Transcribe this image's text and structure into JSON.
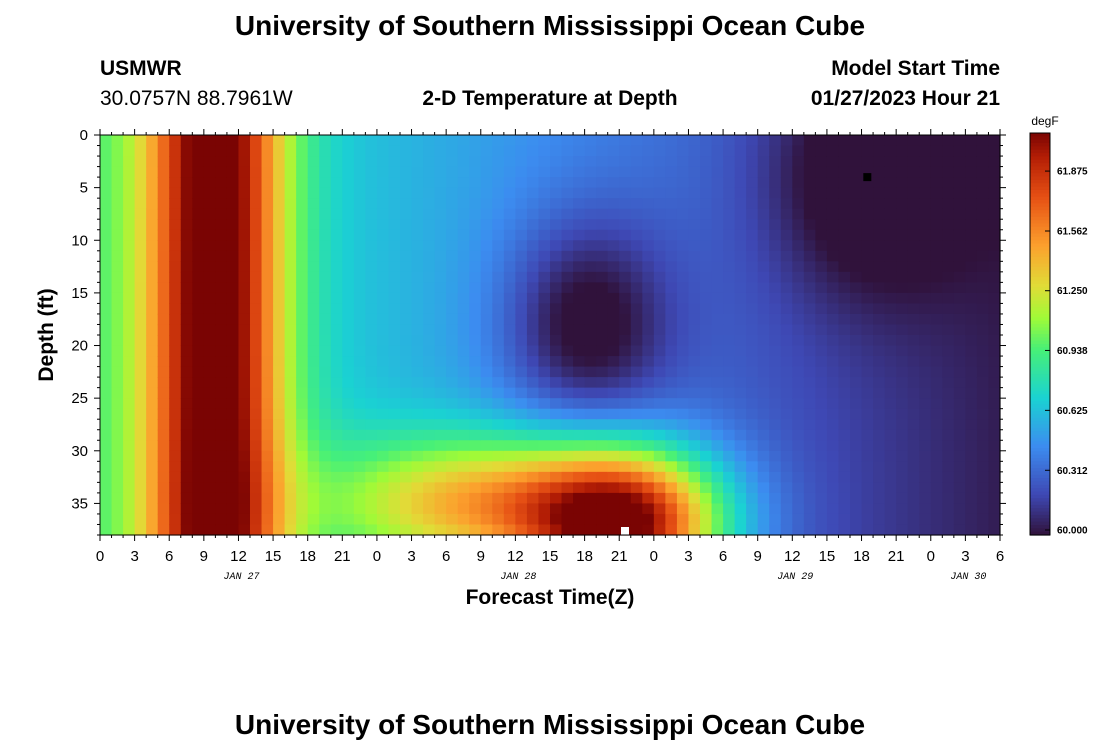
{
  "page": {
    "title": "University of Southern Mississippi Ocean Cube",
    "footer_title": "University of Southern Mississippi Ocean Cube",
    "station": "USMWR",
    "coords": "30.0757N  88.7961W",
    "subtitle": "2-D Temperature at Depth",
    "model_label": "Model Start Time",
    "model_time": "01/27/2023 Hour 21"
  },
  "chart_data": {
    "type": "heatmap",
    "title": "2-D Temperature at Depth",
    "xlabel": "Forecast Time(Z)",
    "ylabel": "Depth (ft)",
    "x_range_hours": [
      0,
      78
    ],
    "y_range_ft": [
      0,
      38
    ],
    "x_tick_labels": [
      "0",
      "3",
      "6",
      "9",
      "12",
      "15",
      "18",
      "21",
      "0",
      "3",
      "6",
      "9",
      "12",
      "15",
      "18",
      "21",
      "0",
      "3",
      "6",
      "9",
      "12",
      "15",
      "18",
      "21",
      "0",
      "3",
      "6"
    ],
    "x_tick_hours": [
      0,
      3,
      6,
      9,
      12,
      15,
      18,
      21,
      24,
      27,
      30,
      33,
      36,
      39,
      42,
      45,
      48,
      51,
      54,
      57,
      60,
      63,
      66,
      69,
      72,
      75,
      78
    ],
    "y_tick_labels": [
      "0",
      "5",
      "10",
      "15",
      "20",
      "25",
      "30",
      "35"
    ],
    "y_tick_values": [
      0,
      5,
      10,
      15,
      20,
      25,
      30,
      35
    ],
    "date_labels": [
      {
        "text": "JAN 27",
        "hour": 12
      },
      {
        "text": "JAN 28",
        "hour": 36
      },
      {
        "text": "JAN 29",
        "hour": 60
      },
      {
        "text": "JAN 30",
        "hour": 75
      }
    ],
    "colorbar": {
      "unit": "degF",
      "min": 60.0,
      "max": 62.1,
      "tick_labels": [
        "61.875",
        "61.562",
        "61.250",
        "60.938",
        "60.625",
        "60.312",
        "60.000"
      ],
      "tick_values": [
        61.875,
        61.562,
        61.25,
        60.938,
        60.625,
        60.312,
        60.0
      ]
    },
    "markers": [
      {
        "type": "min",
        "hour": 66.5,
        "depth": 4,
        "color": "#000000"
      },
      {
        "type": "max",
        "hour": 45.5,
        "depth": 38,
        "color": "#ffffff"
      }
    ],
    "field": {
      "description_components": [
        {
          "hour": 10,
          "depth": 19,
          "sx": 4.2,
          "sy": 200,
          "amp": 1.5
        },
        {
          "hour": 45.5,
          "depth": 37,
          "sx": 6,
          "sy": 5,
          "amp": 1.6
        },
        {
          "hour": 33,
          "depth": 35,
          "sx": 9,
          "sy": 4.5,
          "amp": 0.9
        },
        {
          "hour": 42,
          "depth": 18,
          "sx": 5,
          "sy": 7,
          "amp": -0.5
        },
        {
          "hour": 66.5,
          "depth": 4,
          "sx": 6,
          "sy": 8,
          "amp": -0.35
        }
      ],
      "base_c": 60.9,
      "base_slope_per_hour": -0.011
    }
  }
}
